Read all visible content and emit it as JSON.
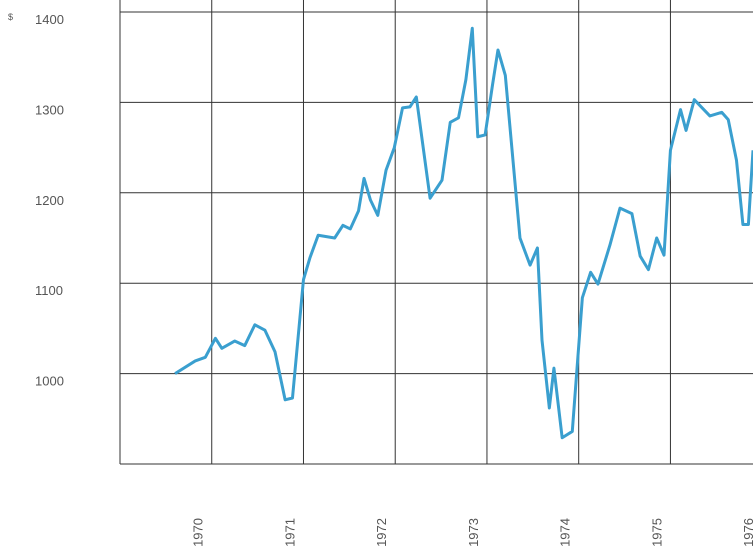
{
  "chart_data": {
    "type": "line",
    "currency": "$",
    "x": [
      1969.6,
      1969.82,
      1969.93,
      1970.04,
      1970.11,
      1970.25,
      1970.36,
      1970.47,
      1970.58,
      1970.69,
      1970.8,
      1970.88,
      1971.0,
      1971.07,
      1971.16,
      1971.34,
      1971.43,
      1971.51,
      1971.6,
      1971.66,
      1971.73,
      1971.81,
      1971.9,
      1971.99,
      1972.08,
      1972.16,
      1972.23,
      1972.38,
      1972.51,
      1972.6,
      1972.69,
      1972.77,
      1972.84,
      1972.9,
      1972.98,
      1973.06,
      1973.12,
      1973.2,
      1973.36,
      1973.47,
      1973.55,
      1973.6,
      1973.68,
      1973.73,
      1973.82,
      1973.93,
      1974.04,
      1974.13,
      1974.21,
      1974.34,
      1974.45,
      1974.58,
      1974.67,
      1974.76,
      1974.85,
      1974.93,
      1975.0,
      1975.11,
      1975.17,
      1975.26,
      1975.43,
      1975.56,
      1975.63,
      1975.72,
      1975.79,
      1975.85,
      1975.9
    ],
    "series": [
      {
        "color": "#3a9fcf",
        "values": [
          1000,
          1014,
          1018,
          1039,
          1028,
          1036,
          1031,
          1054,
          1048,
          1024,
          971,
          973,
          1104,
          1128,
          1153,
          1150,
          1164,
          1160,
          1180,
          1216,
          1192,
          1175,
          1225,
          1250,
          1294,
          1295,
          1306,
          1194,
          1214,
          1278,
          1283,
          1325,
          1382,
          1262,
          1264,
          1319,
          1358,
          1330,
          1150,
          1120,
          1139,
          1037,
          962,
          1006,
          929,
          936,
          1084,
          1112,
          1099,
          1142,
          1183,
          1177,
          1130,
          1115,
          1150,
          1131,
          1247,
          1292,
          1269,
          1303,
          1285,
          1289,
          1281,
          1236,
          1165,
          1165,
          1247
        ]
      }
    ],
    "xlim": [
      1969,
      1975.9
    ],
    "xticks": [
      1970,
      1971,
      1972,
      1973,
      1974,
      1975,
      1976
    ],
    "ylim": [
      900,
      1400
    ],
    "yticks": [
      1000,
      1100,
      1200,
      1300,
      1400
    ],
    "grid": true
  }
}
